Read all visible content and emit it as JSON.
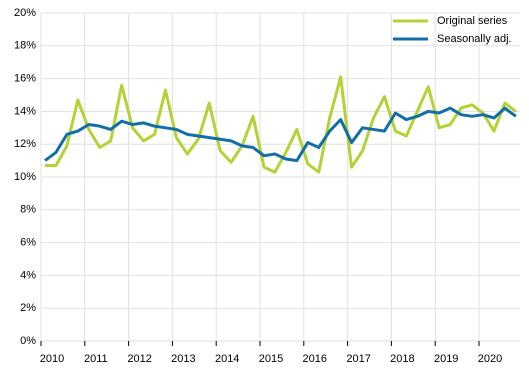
{
  "chart_data": {
    "type": "line",
    "categories": [
      "2010",
      null,
      null,
      null,
      "2011",
      null,
      null,
      null,
      "2012",
      null,
      null,
      null,
      "2013",
      null,
      null,
      null,
      "2014",
      null,
      null,
      null,
      "2015",
      null,
      null,
      null,
      "2016",
      null,
      null,
      null,
      "2017",
      null,
      null,
      null,
      "2018",
      null,
      null,
      null,
      "2019",
      null,
      null,
      null,
      "2020",
      null,
      null,
      null
    ],
    "series": [
      {
        "name": "Original series",
        "color": "#b3d235",
        "values": [
          10.7,
          10.7,
          11.9,
          14.7,
          12.9,
          11.8,
          12.2,
          15.6,
          13.0,
          12.2,
          12.6,
          15.3,
          12.4,
          11.4,
          12.3,
          14.5,
          11.6,
          10.9,
          11.9,
          13.7,
          10.6,
          10.3,
          11.5,
          12.9,
          10.8,
          10.3,
          13.6,
          16.1,
          10.6,
          11.6,
          13.6,
          14.9,
          12.8,
          12.5,
          14.0,
          15.5,
          13.0,
          13.2,
          14.2,
          14.4,
          13.9,
          12.8,
          14.5,
          14.0
        ]
      },
      {
        "name": "Seasonally adj.",
        "color": "#116ea6",
        "values": [
          11.0,
          11.5,
          12.6,
          12.8,
          13.2,
          13.1,
          12.9,
          13.4,
          13.2,
          13.3,
          13.1,
          13.0,
          12.9,
          12.6,
          12.5,
          12.4,
          12.3,
          12.2,
          11.9,
          11.8,
          11.3,
          11.4,
          11.1,
          11.0,
          12.1,
          11.8,
          12.8,
          13.5,
          12.1,
          13.0,
          12.9,
          12.8,
          13.9,
          13.5,
          13.7,
          14.0,
          13.9,
          14.2,
          13.8,
          13.7,
          13.8,
          13.6,
          14.2,
          13.7
        ]
      }
    ],
    "ylim": [
      0,
      20
    ],
    "yticks": [
      {
        "value": 0,
        "label": "0%"
      },
      {
        "value": 2,
        "label": "2%"
      },
      {
        "value": 4,
        "label": "4%"
      },
      {
        "value": 6,
        "label": "6%"
      },
      {
        "value": 8,
        "label": "8%"
      },
      {
        "value": 10,
        "label": "10%"
      },
      {
        "value": 12,
        "label": "12%"
      },
      {
        "value": 14,
        "label": "14%"
      },
      {
        "value": 16,
        "label": "16%"
      },
      {
        "value": 18,
        "label": "18%"
      },
      {
        "value": 20,
        "label": "20%"
      }
    ],
    "grid": true,
    "legend": "top-right"
  }
}
